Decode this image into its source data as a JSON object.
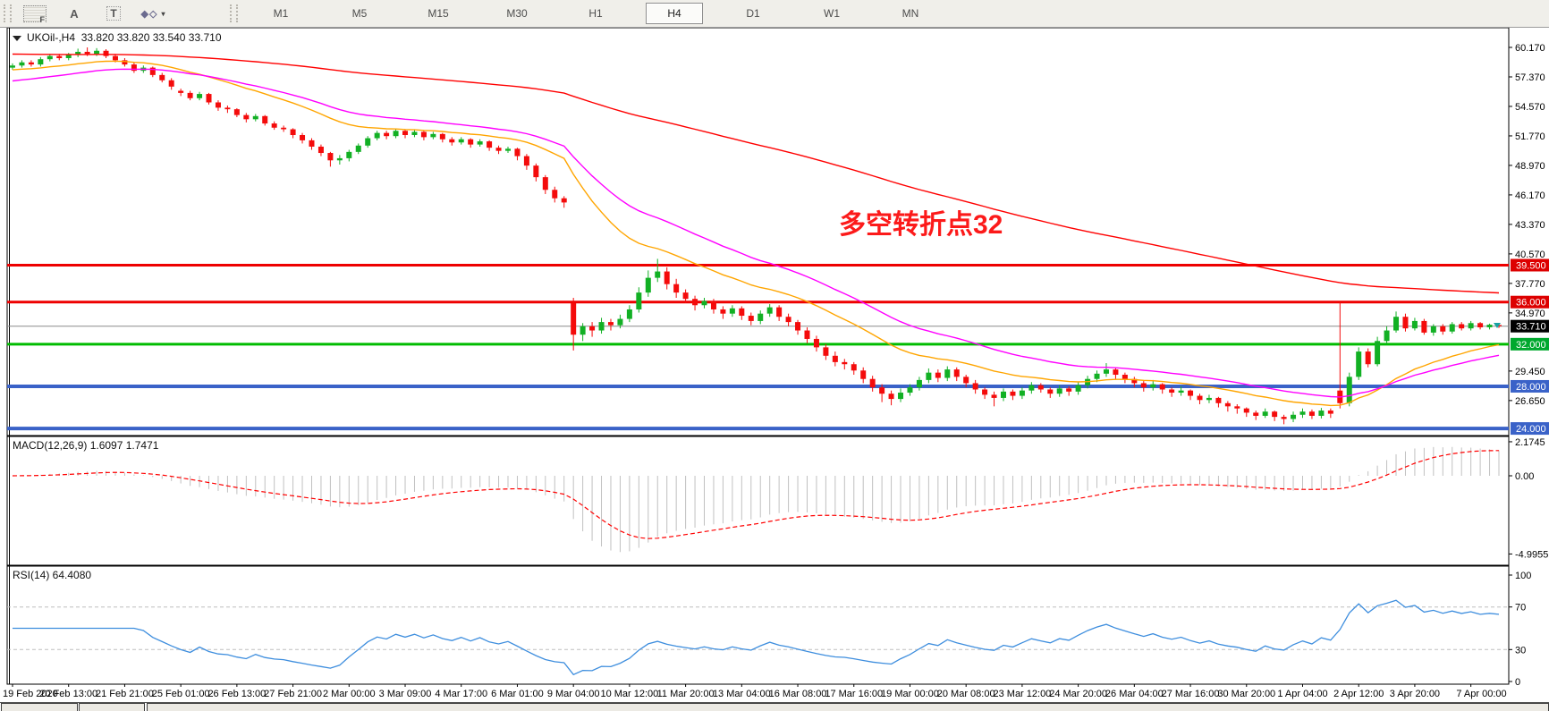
{
  "toolbar": {
    "tools": [
      {
        "name": "fibo-grid-tool",
        "glyph": "F"
      },
      {
        "name": "text-label-tool",
        "glyph": "A"
      },
      {
        "name": "text-box-tool",
        "glyph": "T"
      },
      {
        "name": "arrows-tool",
        "glyph": "◆◇"
      }
    ],
    "timeframes": [
      "M1",
      "M5",
      "M15",
      "M30",
      "H1",
      "H4",
      "D1",
      "W1",
      "MN"
    ],
    "active_timeframe": "H4"
  },
  "chart": {
    "symbol_label": "UKOil-,H4",
    "ohlc_label": "33.820 33.820 33.540 33.710",
    "annotation_text": "多空转折点32",
    "macd_label": "MACD(12,26,9) 1.6097 1.7471",
    "rsi_label": "RSI(14) 64.4080",
    "current_price": "33.710"
  },
  "chart_data": {
    "type": "candlestick",
    "title": "UKOil- H4",
    "colors": {
      "up": "#12B024",
      "down": "#F40B0B",
      "macd_hist": "#C0C0C0",
      "macd_signal": "#FF0000",
      "rsi_line": "#3E8EDE",
      "rsi_level": "#BDBDBD",
      "price_line": "#8a8a8a"
    },
    "price_axis_ticks": [
      60.17,
      57.37,
      54.57,
      51.77,
      48.97,
      46.17,
      43.37,
      40.57,
      37.77,
      34.97,
      29.45,
      26.65
    ],
    "levels": [
      {
        "price": 39.5,
        "color": "#EE0000",
        "width": 3,
        "badge": "39.500",
        "badge_bg": "#DD0000"
      },
      {
        "price": 36.0,
        "color": "#EE0000",
        "width": 3,
        "badge": "36.000",
        "badge_bg": "#DD0000"
      },
      {
        "price": 33.71,
        "color": "#8a8a8a",
        "width": 1,
        "badge": "33.710",
        "badge_bg": "#000000"
      },
      {
        "price": 32.0,
        "color": "#00BC00",
        "width": 3,
        "badge": "32.000",
        "badge_bg": "#00A82E"
      },
      {
        "price": 28.0,
        "color": "#3A62C8",
        "width": 4,
        "badge": "28.000",
        "badge_bg": "#3A62C8"
      },
      {
        "price": 24.0,
        "color": "#3A62C8",
        "width": 4,
        "badge": "24.000",
        "badge_bg": "#3A62C8"
      }
    ],
    "moving_averages": [
      {
        "period": 21,
        "color": "#FFA500",
        "seed": 58.0
      },
      {
        "period": 34,
        "color": "#FF00FF",
        "seed": 56.9
      },
      {
        "period": 150,
        "color": "#FF0000",
        "seed": 59.55
      }
    ],
    "macd": {
      "fast": 12,
      "slow": 26,
      "signal": 9,
      "ticks": [
        "2.1745",
        "0.00",
        "-4.9955"
      ],
      "tick_values": [
        2.1745,
        0.0,
        -4.9955
      ]
    },
    "rsi": {
      "period": 14,
      "levels": [
        70,
        30
      ],
      "ticks": [
        "100",
        "70",
        "30",
        "0"
      ],
      "tick_values": [
        100,
        70,
        30,
        0
      ]
    },
    "time_labels": [
      "19 Feb 2020",
      "20 Feb 13:00",
      "21 Feb 21:00",
      "25 Feb 01:00",
      "26 Feb 13:00",
      "27 Feb 21:00",
      "2 Mar 00:00",
      "3 Mar 09:00",
      "4 Mar 17:00",
      "6 Mar 01:00",
      "9 Mar 04:00",
      "10 Mar 12:00",
      "11 Mar 20:00",
      "13 Mar 04:00",
      "16 Mar 08:00",
      "17 Mar 16:00",
      "19 Mar 00:00",
      "20 Mar 08:00",
      "23 Mar 12:00",
      "24 Mar 20:00",
      "26 Mar 04:00",
      "27 Mar 16:00",
      "30 Mar 20:00",
      "1 Apr 04:00",
      "2 Apr 12:00",
      "3 Apr 20:00",
      "7 Apr 00:00"
    ],
    "candles": [
      [
        58.25,
        58.65,
        58.05,
        58.45
      ],
      [
        58.45,
        58.95,
        58.25,
        58.75
      ],
      [
        58.75,
        58.95,
        58.35,
        58.55
      ],
      [
        58.55,
        59.25,
        58.35,
        59.05
      ],
      [
        59.05,
        59.55,
        58.85,
        59.35
      ],
      [
        59.35,
        59.55,
        58.95,
        59.15
      ],
      [
        59.15,
        59.65,
        58.95,
        59.45
      ],
      [
        59.45,
        60.05,
        59.25,
        59.75
      ],
      [
        59.75,
        60.17,
        59.35,
        59.55
      ],
      [
        59.55,
        60.1,
        59.35,
        59.85
      ],
      [
        59.85,
        60.0,
        59.15,
        59.35
      ],
      [
        59.35,
        59.55,
        58.75,
        58.95
      ],
      [
        58.95,
        59.15,
        58.35,
        58.55
      ],
      [
        58.55,
        58.75,
        57.75,
        57.95
      ],
      [
        57.95,
        58.45,
        57.75,
        58.25
      ],
      [
        58.25,
        58.35,
        57.35,
        57.55
      ],
      [
        57.55,
        57.75,
        56.85,
        57.05
      ],
      [
        57.05,
        57.25,
        56.15,
        56.45
      ],
      [
        56.05,
        56.25,
        55.55,
        55.85
      ],
      [
        55.85,
        56.05,
        55.15,
        55.35
      ],
      [
        55.35,
        55.95,
        55.15,
        55.75
      ],
      [
        55.75,
        55.85,
        54.75,
        54.95
      ],
      [
        54.95,
        55.15,
        54.15,
        54.45
      ],
      [
        54.45,
        54.65,
        53.95,
        54.3
      ],
      [
        54.3,
        54.4,
        53.55,
        53.75
      ],
      [
        53.75,
        53.95,
        53.05,
        53.35
      ],
      [
        53.35,
        53.85,
        53.15,
        53.65
      ],
      [
        53.65,
        53.75,
        52.75,
        52.95
      ],
      [
        52.95,
        53.15,
        52.35,
        52.55
      ],
      [
        52.55,
        52.75,
        52.15,
        52.4
      ],
      [
        52.4,
        52.5,
        51.55,
        51.85
      ],
      [
        51.85,
        52.05,
        51.05,
        51.35
      ],
      [
        51.35,
        51.55,
        50.45,
        50.75
      ],
      [
        50.75,
        50.95,
        49.85,
        50.15
      ],
      [
        50.15,
        50.25,
        48.85,
        49.45
      ],
      [
        49.45,
        49.95,
        49.05,
        49.65
      ],
      [
        49.65,
        50.45,
        49.35,
        50.25
      ],
      [
        50.25,
        51.05,
        50.05,
        50.85
      ],
      [
        50.85,
        51.75,
        50.65,
        51.55
      ],
      [
        51.55,
        52.25,
        51.35,
        52.05
      ],
      [
        52.05,
        52.25,
        51.45,
        51.75
      ],
      [
        51.75,
        52.45,
        51.55,
        52.25
      ],
      [
        52.25,
        52.35,
        51.55,
        51.85
      ],
      [
        51.85,
        52.35,
        51.65,
        52.15
      ],
      [
        52.15,
        52.25,
        51.35,
        51.65
      ],
      [
        51.65,
        52.15,
        51.45,
        51.95
      ],
      [
        51.95,
        52.05,
        51.15,
        51.45
      ],
      [
        51.45,
        51.65,
        50.85,
        51.15
      ],
      [
        51.15,
        51.65,
        50.95,
        51.45
      ],
      [
        51.45,
        51.55,
        50.65,
        50.95
      ],
      [
        50.95,
        51.45,
        50.75,
        51.25
      ],
      [
        51.25,
        51.35,
        50.35,
        50.65
      ],
      [
        50.65,
        50.85,
        50.05,
        50.35
      ],
      [
        50.35,
        50.75,
        50.15,
        50.55
      ],
      [
        50.55,
        50.65,
        49.45,
        49.85
      ],
      [
        49.85,
        50.05,
        48.55,
        48.95
      ],
      [
        48.95,
        49.15,
        47.45,
        47.85
      ],
      [
        47.85,
        48.05,
        46.25,
        46.65
      ],
      [
        46.65,
        46.95,
        45.45,
        45.85
      ],
      [
        45.85,
        46.05,
        44.95,
        45.45
      ],
      [
        35.9,
        36.4,
        31.4,
        32.9
      ],
      [
        32.9,
        34.0,
        32.3,
        33.7
      ],
      [
        33.7,
        34.1,
        32.7,
        33.3
      ],
      [
        33.3,
        34.5,
        33.0,
        34.1
      ],
      [
        34.1,
        34.4,
        33.3,
        33.8
      ],
      [
        33.8,
        34.8,
        33.5,
        34.4
      ],
      [
        34.4,
        35.7,
        34.1,
        35.3
      ],
      [
        35.3,
        37.4,
        35.0,
        36.9
      ],
      [
        36.9,
        39.0,
        36.5,
        38.3
      ],
      [
        38.3,
        40.1,
        37.9,
        38.9
      ],
      [
        38.9,
        39.3,
        37.2,
        37.7
      ],
      [
        37.7,
        38.2,
        36.4,
        36.9
      ],
      [
        36.9,
        37.2,
        35.9,
        36.3
      ],
      [
        36.3,
        36.6,
        35.2,
        35.7
      ],
      [
        35.7,
        36.4,
        35.4,
        36.1
      ],
      [
        36.1,
        36.3,
        34.9,
        35.3
      ],
      [
        35.3,
        35.6,
        34.4,
        34.9
      ],
      [
        34.9,
        35.7,
        34.6,
        35.4
      ],
      [
        35.4,
        35.6,
        34.3,
        34.7
      ],
      [
        34.7,
        35.0,
        33.8,
        34.2
      ],
      [
        34.2,
        35.2,
        33.9,
        34.9
      ],
      [
        34.9,
        35.8,
        34.6,
        35.5
      ],
      [
        35.5,
        35.7,
        34.2,
        34.6
      ],
      [
        34.6,
        34.9,
        33.7,
        34.1
      ],
      [
        34.1,
        34.3,
        32.9,
        33.3
      ],
      [
        33.3,
        33.6,
        32.1,
        32.5
      ],
      [
        32.5,
        32.8,
        31.3,
        31.7
      ],
      [
        31.7,
        32.0,
        30.5,
        30.9
      ],
      [
        30.9,
        31.3,
        29.9,
        30.3
      ],
      [
        30.3,
        30.6,
        29.6,
        30.1
      ],
      [
        30.1,
        30.3,
        29.1,
        29.5
      ],
      [
        29.5,
        29.8,
        28.3,
        28.7
      ],
      [
        28.7,
        29.0,
        27.5,
        27.9
      ],
      [
        27.9,
        28.2,
        26.5,
        27.3
      ],
      [
        27.3,
        27.6,
        26.2,
        26.8
      ],
      [
        26.8,
        27.8,
        26.5,
        27.4
      ],
      [
        27.4,
        28.2,
        27.1,
        27.9
      ],
      [
        27.9,
        28.9,
        27.6,
        28.6
      ],
      [
        28.6,
        29.7,
        28.3,
        29.3
      ],
      [
        29.3,
        29.6,
        28.4,
        28.8
      ],
      [
        28.8,
        29.9,
        28.5,
        29.6
      ],
      [
        29.6,
        29.8,
        28.5,
        28.9
      ],
      [
        28.9,
        29.1,
        27.9,
        28.3
      ],
      [
        28.3,
        28.6,
        27.3,
        27.7
      ],
      [
        27.7,
        27.9,
        26.8,
        27.2
      ],
      [
        27.2,
        27.5,
        26.1,
        26.9
      ],
      [
        26.9,
        27.8,
        26.6,
        27.5
      ],
      [
        27.5,
        27.7,
        26.7,
        27.1
      ],
      [
        27.1,
        27.9,
        26.8,
        27.6
      ],
      [
        27.6,
        28.4,
        27.3,
        28.1
      ],
      [
        28.1,
        28.3,
        27.4,
        27.7
      ],
      [
        27.7,
        27.9,
        26.9,
        27.3
      ],
      [
        27.3,
        28.1,
        27.0,
        27.8
      ],
      [
        27.8,
        28.0,
        27.1,
        27.5
      ],
      [
        27.5,
        28.4,
        27.2,
        28.1
      ],
      [
        28.1,
        29.0,
        27.8,
        28.7
      ],
      [
        28.7,
        29.5,
        28.4,
        29.2
      ],
      [
        29.2,
        30.2,
        28.9,
        29.6
      ],
      [
        29.6,
        29.8,
        28.7,
        29.1
      ],
      [
        29.1,
        29.3,
        28.3,
        28.7
      ],
      [
        28.7,
        28.9,
        27.9,
        28.3
      ],
      [
        28.3,
        28.5,
        27.5,
        27.9
      ],
      [
        27.9,
        28.6,
        27.6,
        28.2
      ],
      [
        28.2,
        28.3,
        27.3,
        27.7
      ],
      [
        27.7,
        27.9,
        27.0,
        27.4
      ],
      [
        27.4,
        28.0,
        27.1,
        27.6
      ],
      [
        27.6,
        27.7,
        26.7,
        27.1
      ],
      [
        27.1,
        27.3,
        26.3,
        26.7
      ],
      [
        26.7,
        27.2,
        26.4,
        26.9
      ],
      [
        26.9,
        27.0,
        26.0,
        26.4
      ],
      [
        26.4,
        26.6,
        25.6,
        26.1
      ],
      [
        26.1,
        26.3,
        25.4,
        25.9
      ],
      [
        25.9,
        26.0,
        25.1,
        25.5
      ],
      [
        25.5,
        25.7,
        24.8,
        25.2
      ],
      [
        25.2,
        25.9,
        25.0,
        25.6
      ],
      [
        25.6,
        25.7,
        24.7,
        25.1
      ],
      [
        25.1,
        25.3,
        24.4,
        24.9
      ],
      [
        24.9,
        25.6,
        24.6,
        25.3
      ],
      [
        25.3,
        25.9,
        25.0,
        25.6
      ],
      [
        25.6,
        25.8,
        24.9,
        25.2
      ],
      [
        25.2,
        25.95,
        24.95,
        25.7
      ],
      [
        25.7,
        25.9,
        25.0,
        25.4
      ],
      [
        27.6,
        36.0,
        25.9,
        26.4
      ],
      [
        26.4,
        29.3,
        26.1,
        28.9
      ],
      [
        28.9,
        31.7,
        28.6,
        31.3
      ],
      [
        31.3,
        31.6,
        29.8,
        30.1
      ],
      [
        30.1,
        32.7,
        29.9,
        32.3
      ],
      [
        32.3,
        33.7,
        32.0,
        33.3
      ],
      [
        33.3,
        35.1,
        33.1,
        34.6
      ],
      [
        34.6,
        34.9,
        33.2,
        33.5
      ],
      [
        33.5,
        34.5,
        33.3,
        34.2
      ],
      [
        34.2,
        34.4,
        32.9,
        33.1
      ],
      [
        33.1,
        33.9,
        32.8,
        33.7
      ],
      [
        33.7,
        33.9,
        32.9,
        33.2
      ],
      [
        33.2,
        34.1,
        33.0,
        33.9
      ],
      [
        33.9,
        34.1,
        33.3,
        33.5
      ],
      [
        33.5,
        34.2,
        33.3,
        34.0
      ],
      [
        34.0,
        34.1,
        33.4,
        33.6
      ],
      [
        33.6,
        33.95,
        33.4,
        33.85
      ],
      [
        33.82,
        33.82,
        33.54,
        33.71
      ]
    ]
  },
  "bottom_tabs": {
    "count": 3
  }
}
